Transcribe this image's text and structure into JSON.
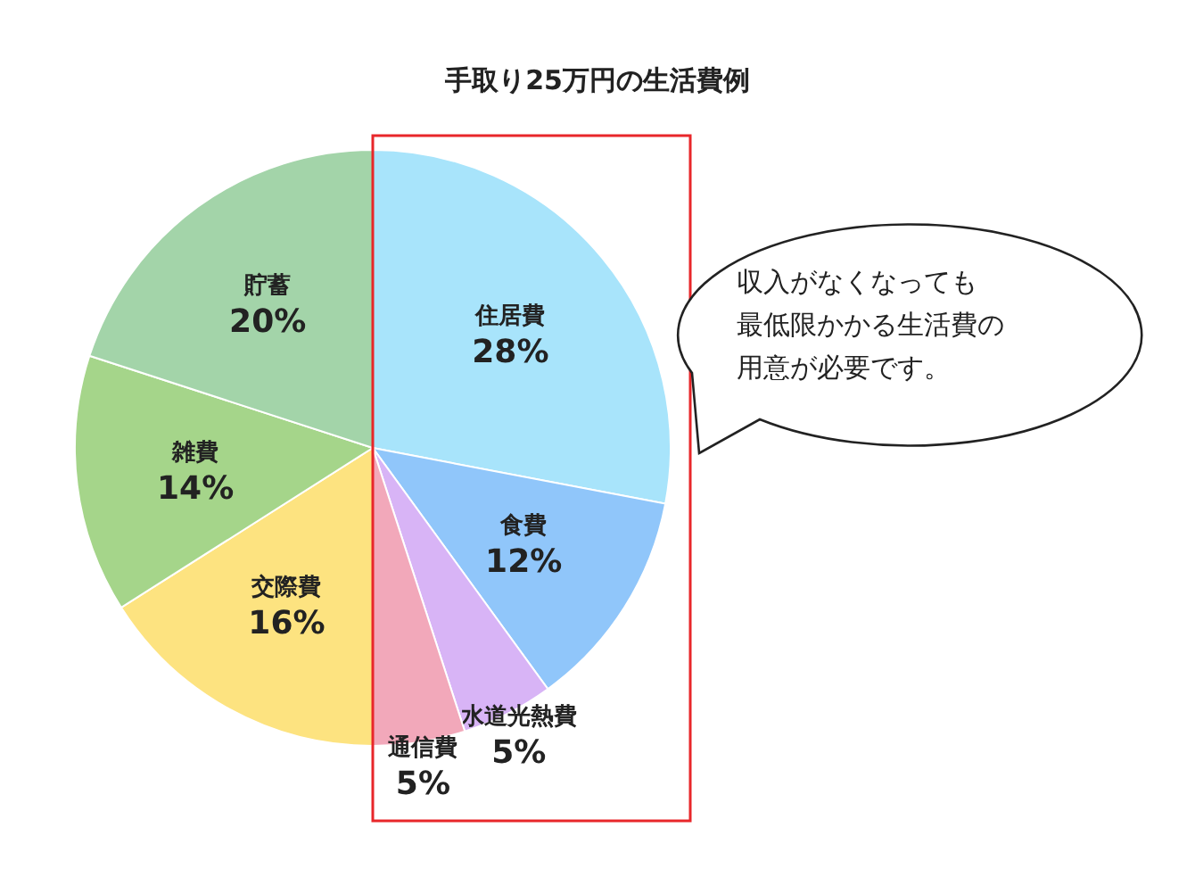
{
  "chart_data": {
    "type": "pie",
    "title": "手取り25万円の生活費例",
    "categories": [
      "住居費",
      "食費",
      "水道光熱費",
      "通信費",
      "交際費",
      "雑費",
      "貯蓄"
    ],
    "values": [
      28,
      12,
      5,
      5,
      16,
      14,
      20
    ],
    "value_labels": [
      "28%",
      "12%",
      "5%",
      "5%",
      "16%",
      "14%",
      "20%"
    ],
    "colors": [
      "#a8e4fb",
      "#90c6fa",
      "#d8b4f6",
      "#f2a8ba",
      "#fde380",
      "#a5d58a",
      "#a3d4a9"
    ],
    "annotations": [
      "収入がなくなっても",
      "最低限かかる生活費の",
      "用意が必要です。"
    ]
  }
}
